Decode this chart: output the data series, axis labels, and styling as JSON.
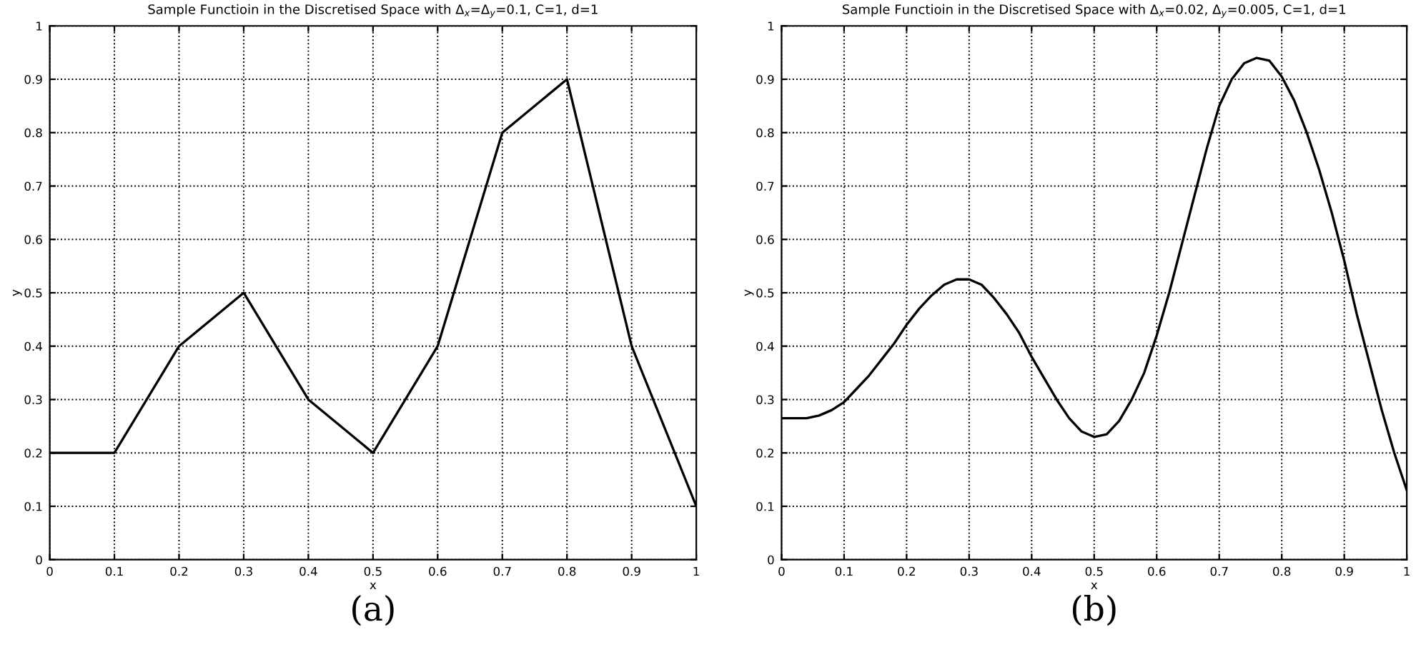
{
  "chart_data": [
    {
      "type": "line",
      "title": "Sample Functioin in the Discretised Space with Δ$_{x}$=Δ$_{y}$=0.1, C=1, d=1",
      "xlabel": "x",
      "ylabel": "y",
      "x": [
        0,
        0.1,
        0.2,
        0.3,
        0.4,
        0.5,
        0.6,
        0.7,
        0.8,
        0.9,
        1.0
      ],
      "series": [
        {
          "color": "#000000",
          "values": [
            0.2,
            0.2,
            0.4,
            0.5,
            0.3,
            0.2,
            0.4,
            0.8,
            0.9,
            0.4,
            0.1
          ]
        }
      ],
      "xlim": [
        0,
        1
      ],
      "ylim": [
        0,
        1
      ],
      "xticks": [
        0,
        0.1,
        0.2,
        0.3,
        0.4,
        0.5,
        0.6,
        0.7,
        0.8,
        0.9,
        1
      ],
      "yticks": [
        0,
        0.1,
        0.2,
        0.3,
        0.4,
        0.5,
        0.6,
        0.7,
        0.8,
        0.9,
        1
      ],
      "grid": true,
      "line_style": "solid",
      "annotations": [
        "(a)"
      ]
    },
    {
      "type": "line",
      "title": "Sample Functioin in the Discretised Space with Δ$_{x}$=0.02, Δ$_{y}$=0.005, C=1, d=1",
      "xlabel": "x",
      "ylabel": "y",
      "x": [
        0,
        0.02,
        0.04,
        0.06,
        0.08,
        0.1,
        0.12,
        0.14,
        0.16,
        0.18,
        0.2,
        0.22,
        0.24,
        0.26,
        0.28,
        0.3,
        0.32,
        0.34,
        0.36,
        0.38,
        0.4,
        0.42,
        0.44,
        0.46,
        0.48,
        0.5,
        0.52,
        0.54,
        0.56,
        0.58,
        0.6,
        0.62,
        0.64,
        0.66,
        0.68,
        0.7,
        0.72,
        0.74,
        0.76,
        0.78,
        0.8,
        0.82,
        0.84,
        0.86,
        0.88,
        0.9,
        0.92,
        0.94,
        0.96,
        0.98,
        1.0
      ],
      "series": [
        {
          "color": "#000000",
          "values": [
            0.265,
            0.265,
            0.265,
            0.27,
            0.28,
            0.295,
            0.32,
            0.345,
            0.375,
            0.405,
            0.44,
            0.47,
            0.495,
            0.515,
            0.525,
            0.525,
            0.515,
            0.49,
            0.46,
            0.425,
            0.38,
            0.34,
            0.3,
            0.265,
            0.24,
            0.23,
            0.235,
            0.26,
            0.3,
            0.35,
            0.42,
            0.5,
            0.59,
            0.68,
            0.77,
            0.85,
            0.9,
            0.93,
            0.94,
            0.935,
            0.905,
            0.86,
            0.8,
            0.73,
            0.65,
            0.56,
            0.46,
            0.37,
            0.28,
            0.2,
            0.13
          ]
        }
      ],
      "xlim": [
        0,
        1
      ],
      "ylim": [
        0,
        1
      ],
      "xticks": [
        0,
        0.1,
        0.2,
        0.3,
        0.4,
        0.5,
        0.6,
        0.7,
        0.8,
        0.9,
        1
      ],
      "yticks": [
        0,
        0.1,
        0.2,
        0.3,
        0.4,
        0.5,
        0.6,
        0.7,
        0.8,
        0.9,
        1
      ],
      "grid": true,
      "line_style": "solid",
      "annotations": [
        "(b)"
      ]
    }
  ]
}
